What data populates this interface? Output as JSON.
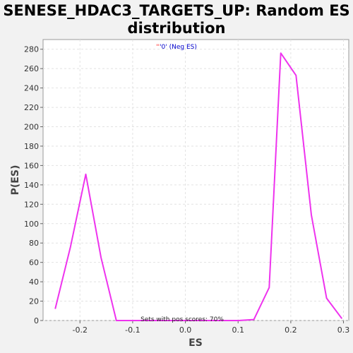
{
  "chart_data": {
    "type": "line",
    "title_line1": "SENESE_HDAC3_TARGETS_UP: Random ES",
    "title_line2": "distribution",
    "xlabel": "ES",
    "ylabel": "P(ES)",
    "xlim": [
      -0.27,
      0.31
    ],
    "ylim": [
      0,
      290
    ],
    "x_ticks": [
      -0.2,
      -0.1,
      0.0,
      0.1,
      0.2,
      0.3
    ],
    "x_tick_labels": [
      "-0.2",
      "-0.1",
      "0.0",
      "0.1",
      "0.2",
      "0.3"
    ],
    "y_ticks": [
      0,
      20,
      40,
      60,
      80,
      100,
      120,
      140,
      160,
      180,
      200,
      220,
      240,
      260,
      280
    ],
    "y_tick_labels": [
      "0",
      "20",
      "40",
      "60",
      "80",
      "100",
      "120",
      "140",
      "160",
      "180",
      "200",
      "220",
      "240",
      "260",
      "280"
    ],
    "grid": true,
    "legend": {
      "quote_text": "''",
      "quote_color": "#ff0000",
      "label_text": "'0' (Neg ES)",
      "label_color": "#0000cc",
      "placement": "top-center"
    },
    "annotation": "Sets with pos scores: 70%",
    "series": [
      {
        "color": "#ee33ee",
        "x": [
          -0.247,
          -0.218,
          -0.189,
          -0.16,
          -0.131,
          -0.102,
          -0.073,
          -0.044,
          -0.015,
          0.014,
          0.043,
          0.072,
          0.101,
          0.13,
          0.159,
          0.181,
          0.21,
          0.239,
          0.268,
          0.297
        ],
        "y": [
          12,
          76,
          151,
          65,
          0,
          0,
          0,
          0,
          0,
          0,
          0,
          0,
          0,
          1,
          34,
          276,
          253,
          109,
          23,
          2
        ]
      }
    ]
  }
}
